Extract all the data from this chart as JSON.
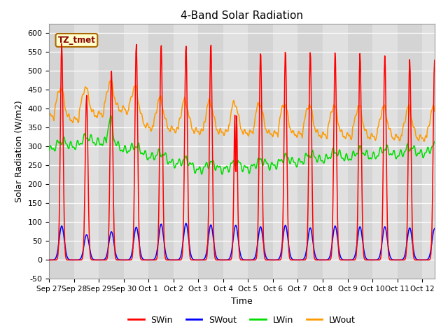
{
  "title": "4-Band Solar Radiation",
  "xlabel": "Time",
  "ylabel": "Solar Radiation (W/m2)",
  "ylim": [
    -50,
    625
  ],
  "yticks": [
    -50,
    0,
    50,
    100,
    150,
    200,
    250,
    300,
    350,
    400,
    450,
    500,
    550,
    600
  ],
  "num_days": 15.5,
  "day_labels": [
    "Sep 27",
    "Sep 28",
    "Sep 29",
    "Sep 30",
    "Oct 1",
    "Oct 2",
    "Oct 3",
    "Oct 4",
    "Oct 5",
    "Oct 6",
    "Oct 7",
    "Oct 8",
    "Oct 9",
    "Oct 10",
    "Oct 11",
    "Oct 12"
  ],
  "colors": {
    "SWin": "#ff0000",
    "SWout": "#0000ff",
    "LWin": "#00dd00",
    "LWout": "#ff9900"
  },
  "annotation_label": "TZ_tmet",
  "annotation_color": "#880000",
  "annotation_bg": "#ffffcc",
  "annotation_border": "#aa6600"
}
